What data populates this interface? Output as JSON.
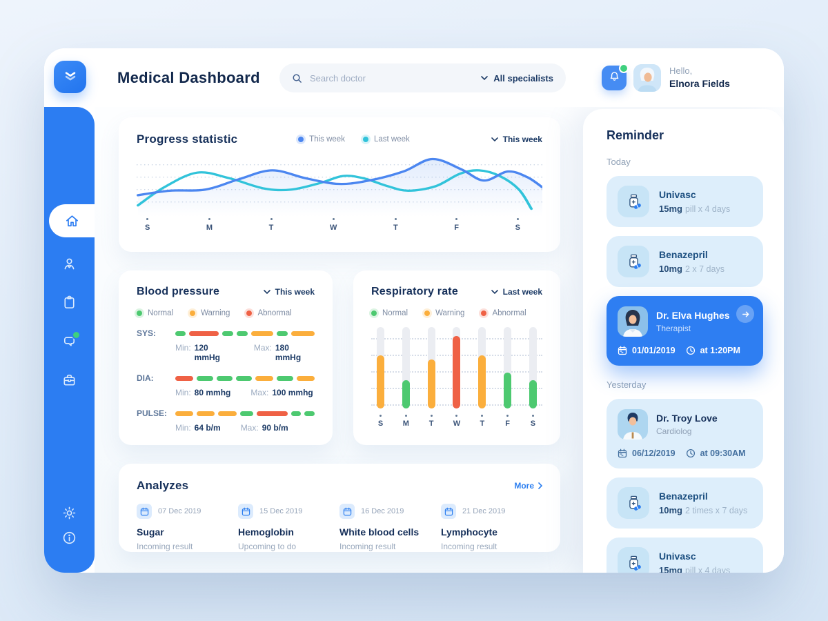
{
  "app": {
    "title": "Medical Dashboard"
  },
  "header": {
    "search_placeholder": "Search doctor",
    "filter_label": "All specialists",
    "greeting": "Hello,",
    "user_name": "Elnora Fields"
  },
  "sidebar": {
    "items": [
      {
        "icon": "home-icon",
        "active": true
      },
      {
        "icon": "doctor-icon",
        "active": false
      },
      {
        "icon": "clipboard-icon",
        "active": false
      },
      {
        "icon": "chat-icon",
        "active": false,
        "badge": true
      },
      {
        "icon": "archive-icon",
        "active": false
      }
    ],
    "footer_items": [
      {
        "icon": "settings-icon"
      },
      {
        "icon": "info-icon"
      }
    ]
  },
  "colors": {
    "primary": "#2d7ff0",
    "navy": "#16305a",
    "normal": "#4dc970",
    "warning": "#fbae3c",
    "abnormal": "#ef6145",
    "line_this_week": "#4b86f0",
    "line_last_week": "#31c3da"
  },
  "progress": {
    "title": "Progress statistic",
    "dropdown_label": "This week",
    "legend": [
      {
        "label": "This week",
        "color": "#4b86f0"
      },
      {
        "label": "Last week",
        "color": "#31c3da"
      }
    ],
    "chart_data": {
      "type": "line",
      "categories": [
        "S",
        "M",
        "T",
        "W",
        "T",
        "F",
        "S"
      ],
      "grid": "dotted-horizontal",
      "ylim": [
        0,
        110
      ],
      "series": [
        {
          "name": "This week",
          "color": "#4b86f0",
          "points": [
            [
              2,
              72
            ],
            [
              48,
              64
            ],
            [
              100,
              62
            ],
            [
              148,
              44
            ],
            [
              197,
              28
            ],
            [
              246,
              42
            ],
            [
              294,
              52
            ],
            [
              338,
              46
            ],
            [
              388,
              30
            ],
            [
              430,
              8
            ],
            [
              472,
              26
            ],
            [
              505,
              46
            ],
            [
              540,
              30
            ],
            [
              568,
              40
            ],
            [
              590,
              58
            ]
          ]
        },
        {
          "name": "Last week",
          "color": "#31c3da",
          "points": [
            [
              2,
              90
            ],
            [
              40,
              58
            ],
            [
              88,
              32
            ],
            [
              135,
              42
            ],
            [
              185,
              60
            ],
            [
              225,
              62
            ],
            [
              268,
              50
            ],
            [
              300,
              38
            ],
            [
              330,
              42
            ],
            [
              365,
              56
            ],
            [
              395,
              64
            ],
            [
              435,
              56
            ],
            [
              470,
              34
            ],
            [
              498,
              28
            ],
            [
              528,
              38
            ],
            [
              556,
              62
            ],
            [
              574,
              96
            ]
          ]
        }
      ]
    }
  },
  "blood_pressure": {
    "title": "Blood pressure",
    "dropdown_label": "This week",
    "legend": [
      {
        "label": "Normal",
        "key": "normal"
      },
      {
        "label": "Warning",
        "key": "warning"
      },
      {
        "label": "Abnormal",
        "key": "abnormal"
      }
    ],
    "rows": [
      {
        "label": "SYS:",
        "min_label": "Min:",
        "min_value": "120 mmHg",
        "max_label": "Max:",
        "max_value": "180 mmHg",
        "segments": [
          [
            "normal",
            2
          ],
          [
            "abnormal",
            6
          ],
          [
            "normal",
            2.2
          ],
          [
            "normal",
            2.2
          ],
          [
            "warning",
            4.4
          ],
          [
            "normal",
            2.2
          ],
          [
            "warning",
            4.6
          ]
        ]
      },
      {
        "label": "DIA:",
        "min_label": "Min:",
        "min_value": "80 mmhg",
        "max_label": "Max:",
        "max_value": "100 mmhg",
        "segments": [
          [
            "abnormal",
            3.4
          ],
          [
            "normal",
            3
          ],
          [
            "normal",
            3
          ],
          [
            "normal",
            3
          ],
          [
            "warning",
            3.4
          ],
          [
            "normal",
            3
          ],
          [
            "warning",
            3.4
          ]
        ]
      },
      {
        "label": "PULSE:",
        "min_label": "Min:",
        "min_value": "64 b/m",
        "max_label": "Max:",
        "max_value": "90 b/m",
        "segments": [
          [
            "warning",
            3.2
          ],
          [
            "warning",
            3.2
          ],
          [
            "warning",
            3.2
          ],
          [
            "normal",
            2.4
          ],
          [
            "abnormal",
            5.4
          ],
          [
            "normal",
            1.8
          ],
          [
            "normal",
            1.8
          ]
        ]
      }
    ]
  },
  "respiratory": {
    "title": "Respiratory rate",
    "dropdown_label": "Last week",
    "legend": [
      {
        "label": "Normal",
        "key": "normal"
      },
      {
        "label": "Warning",
        "key": "warning"
      },
      {
        "label": "Abnormal",
        "key": "abnormal"
      }
    ],
    "chart_data": {
      "type": "bar",
      "categories": [
        "S",
        "M",
        "T",
        "W",
        "T",
        "F",
        "S"
      ],
      "values": [
        65,
        35,
        60,
        89,
        65,
        44,
        35
      ],
      "statuses": [
        "warning",
        "normal",
        "warning",
        "abnormal",
        "warning",
        "normal",
        "normal"
      ],
      "ylim": [
        0,
        100
      ],
      "grid": "dotted-horizontal"
    }
  },
  "analyzes": {
    "title": "Analyzes",
    "more_label": "More",
    "items": [
      {
        "date": "07 Dec 2019",
        "name": "Sugar",
        "status": "Incoming result"
      },
      {
        "date": "15 Dec 2019",
        "name": "Hemoglobin",
        "status": "Upcoming to do"
      },
      {
        "date": "16 Dec 2019",
        "name": "White blood cells",
        "status": "Incoming result"
      },
      {
        "date": "21 Dec 2019",
        "name": "Lymphocyte",
        "status": "Incoming result"
      }
    ]
  },
  "reminder": {
    "title": "Reminder",
    "sections": [
      {
        "label": "Today",
        "items": [
          {
            "type": "medication",
            "name": "Univasc",
            "dose": "15mg",
            "schedule": "pill x 4 days"
          },
          {
            "type": "medication",
            "name": "Benazepril",
            "dose": "10mg",
            "schedule": "2 x 7 days"
          },
          {
            "type": "appointment",
            "name": "Dr. Elva Hughes",
            "specialty": "Therapist",
            "date": "01/01/2019",
            "time": "at 1:20PM",
            "highlighted": true,
            "avatar": "woman-doctor"
          }
        ]
      },
      {
        "label": "Yesterday",
        "items": [
          {
            "type": "appointment",
            "name": "Dr. Troy Love",
            "specialty": "Cardiolog",
            "date": "06/12/2019",
            "time": "at 09:30AM",
            "highlighted": false,
            "avatar": "man-doctor"
          },
          {
            "type": "medication",
            "name": "Benazepril",
            "dose": "10mg",
            "schedule": "2 times x 7 days"
          },
          {
            "type": "medication",
            "name": "Univasc",
            "dose": "15mg",
            "schedule": "pill x 4 days"
          }
        ]
      }
    ]
  }
}
